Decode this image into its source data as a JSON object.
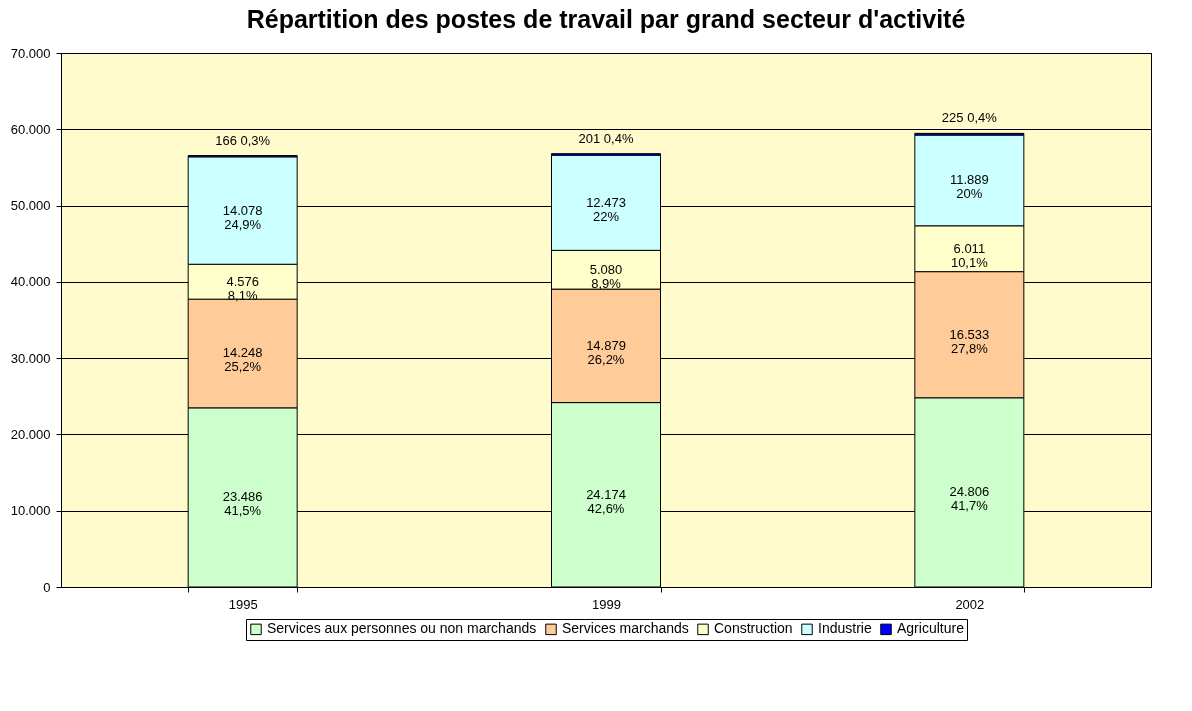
{
  "chart_data": {
    "type": "bar",
    "stacked": true,
    "title": "Répartition des postes de travail par grand secteur d'activité",
    "categories": [
      "1995",
      "1999",
      "2002"
    ],
    "series": [
      {
        "name": "Services aux personnes ou non marchands",
        "color": "#ccffcc",
        "values": [
          23486,
          24174,
          24806
        ],
        "value_labels": [
          "23.486\n41,5%",
          "24.174\n42,6%",
          "24.806\n41,7%"
        ]
      },
      {
        "name": "Services marchands",
        "color": "#ffcc99",
        "values": [
          14248,
          14879,
          16533
        ],
        "value_labels": [
          "14.248\n25,2%",
          "14.879\n26,2%",
          "16.533\n27,8%"
        ]
      },
      {
        "name": "Construction",
        "color": "#ffffcc",
        "values": [
          4576,
          5080,
          6011
        ],
        "value_labels": [
          "4.576\n8,1%",
          "5.080\n8,9%",
          "6.011\n10,1%"
        ]
      },
      {
        "name": "Industrie",
        "color": "#ccffff",
        "values": [
          14078,
          12473,
          11889
        ],
        "value_labels": [
          "14.078\n24,9%",
          "12.473\n22%",
          "11.889\n20%"
        ]
      },
      {
        "name": "Agriculture",
        "color": "#0000ff",
        "values": [
          166,
          201,
          225
        ],
        "value_labels": [
          "166\n0,3%",
          "201\n0,4%",
          "225\n0,4%"
        ]
      }
    ],
    "ylim": [
      0,
      70000
    ],
    "yticks": [
      {
        "value": 0,
        "label": "0"
      },
      {
        "value": 10000,
        "label": "10.000"
      },
      {
        "value": 20000,
        "label": "20.000"
      },
      {
        "value": 30000,
        "label": "30.000"
      },
      {
        "value": 40000,
        "label": "40.000"
      },
      {
        "value": 50000,
        "label": "50.000"
      },
      {
        "value": 60000,
        "label": "60.000"
      },
      {
        "value": 70000,
        "label": "70.000"
      }
    ],
    "grid": "y",
    "legend": "bottom"
  }
}
